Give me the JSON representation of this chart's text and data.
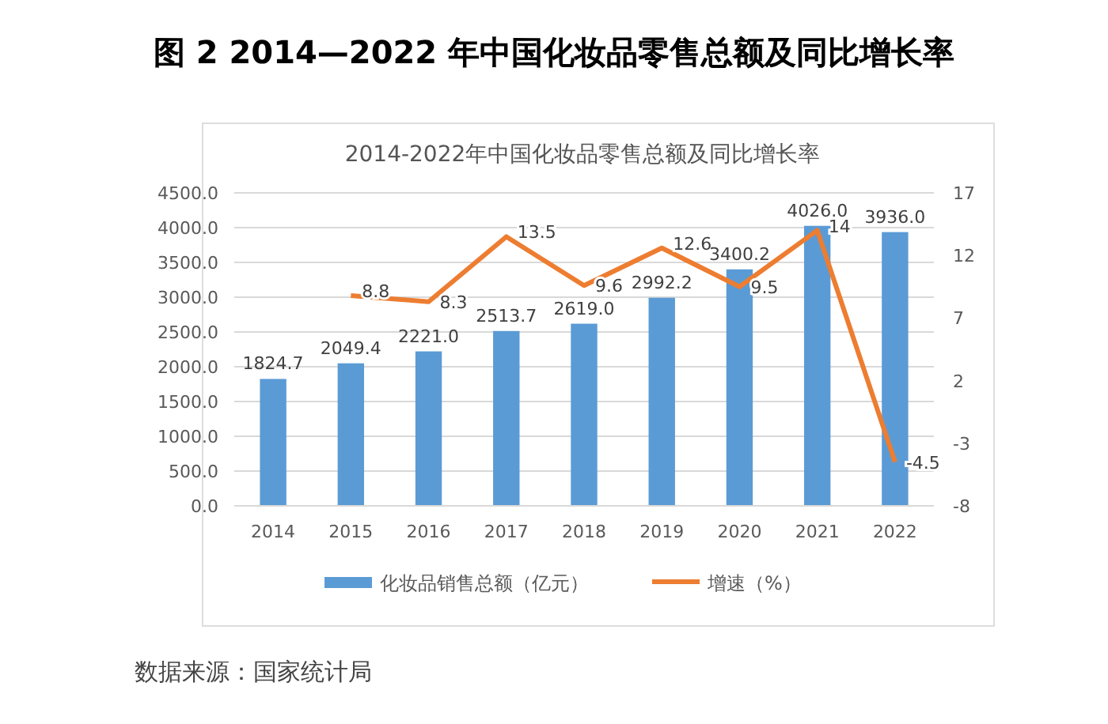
{
  "chart_data": {
    "type": "bar",
    "title": "图 2  2014—2022 年中国化妆品零售总额及同比增长率",
    "subtitle": "2014-2022年中国化妆品零售总额及同比增长率",
    "categories": [
      "2014",
      "2015",
      "2016",
      "2017",
      "2018",
      "2019",
      "2020",
      "2021",
      "2022"
    ],
    "series": [
      {
        "name": "化妆品销售总额（亿元）",
        "color": "#5b9bd5",
        "values": [
          1824.7,
          2049.4,
          2221.0,
          2513.7,
          2619.0,
          2992.2,
          3400.2,
          4026.0,
          3936.0
        ],
        "value_labels": [
          "1824.7",
          "2049.4",
          "2221.0",
          "2513.7",
          "2619.0",
          "2992.2",
          "3400.2",
          "4026.0",
          "3936.0"
        ]
      },
      {
        "name": "增速（%）",
        "type": "line",
        "axis": "y2",
        "color": "#ed7d31",
        "values": [
          null,
          8.8,
          8.3,
          13.5,
          9.6,
          12.6,
          9.5,
          14,
          -4.5
        ],
        "value_labels": [
          null,
          "8.8",
          "8.3",
          "13.5",
          "9.6",
          "12.6",
          "9.5",
          "14",
          "-4.5"
        ]
      }
    ],
    "ylim": [
      0,
      4500
    ],
    "yticks": [
      {
        "value": 0,
        "label": "0.0"
      },
      {
        "value": 500,
        "label": "500.0"
      },
      {
        "value": 1000,
        "label": "1000.0"
      },
      {
        "value": 1500,
        "label": "1500.0"
      },
      {
        "value": 2000,
        "label": "2000.0"
      },
      {
        "value": 2500,
        "label": "2500.0"
      },
      {
        "value": 3000,
        "label": "3000.0"
      },
      {
        "value": 3500,
        "label": "3500.0"
      },
      {
        "value": 4000,
        "label": "4000.0"
      },
      {
        "value": 4500,
        "label": "4500.0"
      }
    ],
    "y2lim": [
      -8,
      17
    ],
    "y2ticks": [
      -8,
      -3,
      2,
      7,
      12,
      17
    ],
    "grid": "y",
    "legend": "bottom",
    "annotations": [
      "数据来源：国家统计局"
    ]
  }
}
